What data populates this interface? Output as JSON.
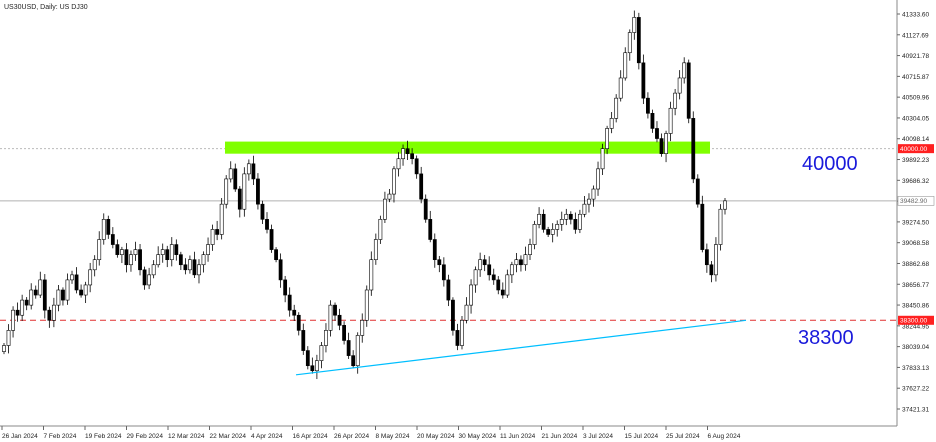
{
  "header": {
    "title": "US30USD, Daily:  US DJ30"
  },
  "annotations": {
    "resistance_label": "40000",
    "support_label": "38300",
    "resistance_tag": "40000.00",
    "support_tag": "38300.00",
    "last_price_tag": "39482.90"
  },
  "colors": {
    "bull_candle": "#ffffff",
    "bear_candle": "#000000",
    "resistance_zone": "#80ff00",
    "support_line": "#e03030",
    "trendline": "#00bfff",
    "label_text": "#1a1adb"
  },
  "chart_data": {
    "type": "candlestick",
    "title": "US30USD, Daily:  US DJ30",
    "ylim": [
      37330,
      41430
    ],
    "y_ticks": [
      "41333.60",
      "41127.69",
      "40921.78",
      "40715.87",
      "40509.96",
      "40304.05",
      "40098.14",
      "39892.23",
      "39686.32",
      "39480.41",
      "39274.50",
      "39068.58",
      "38862.68",
      "38656.77",
      "38450.86",
      "38244.95",
      "38039.04",
      "37833.13",
      "37627.22",
      "37421.31"
    ],
    "x_tick_labels": [
      "26 Jan 2024",
      "7 Feb 2024",
      "19 Feb 2024",
      "29 Feb 2024",
      "12 Mar 2024",
      "22 Mar 2024",
      "4 Apr 2024",
      "16 Apr 2024",
      "26 Apr 2024",
      "8 May 2024",
      "20 May 2024",
      "30 May 2024",
      "11 Jun 2024",
      "21 Jun 2024",
      "3 Jul 2024",
      "15 Jul 2024",
      "25 Jul 2024",
      "6 Aug 2024"
    ],
    "resistance_zone": [
      39960,
      40060
    ],
    "support_level": 38300,
    "last_price": 39482.9,
    "trendline": {
      "start": {
        "date": "18 Apr 2024",
        "price": 37760
      },
      "end": {
        "date": "7 Aug 2024",
        "price": 38300
      }
    },
    "closes": [
      38050,
      38200,
      38400,
      38350,
      38500,
      38450,
      38600,
      38550,
      38700,
      38400,
      38300,
      38450,
      38600,
      38500,
      38700,
      38750,
      38600,
      38550,
      38650,
      38800,
      38900,
      39100,
      39300,
      39150,
      39050,
      38950,
      39000,
      38850,
      38950,
      39000,
      38800,
      38650,
      38750,
      38850,
      38950,
      39000,
      38900,
      39050,
      38950,
      38850,
      38800,
      38900,
      38750,
      38850,
      38950,
      39050,
      39200,
      39150,
      39450,
      39700,
      39800,
      39600,
      39400,
      39750,
      39850,
      39700,
      39450,
      39300,
      39200,
      39000,
      38900,
      38700,
      38550,
      38400,
      38350,
      38200,
      38000,
      37850,
      37800,
      37900,
      38050,
      38200,
      38450,
      38350,
      38250,
      38100,
      37950,
      37850,
      38150,
      38300,
      38600,
      38900,
      39100,
      39300,
      39500,
      39550,
      39800,
      39900,
      40000,
      39950,
      39900,
      39750,
      39500,
      39300,
      39100,
      38900,
      38850,
      38700,
      38500,
      38200,
      38050,
      38300,
      38450,
      38650,
      38800,
      38900,
      38850,
      38750,
      38700,
      38600,
      38550,
      38750,
      38850,
      38900,
      38850,
      38950,
      39050,
      39250,
      39350,
      39200,
      39150,
      39200,
      39250,
      39300,
      39350,
      39300,
      39200,
      39350,
      39450,
      39500,
      39600,
      39800,
      40000,
      40200,
      40300,
      40500,
      40700,
      40950,
      41150,
      41300,
      40850,
      40500,
      40350,
      40200,
      40100,
      39950,
      40150,
      40400,
      40550,
      40700,
      40850,
      40300,
      39700,
      39450,
      39000,
      38850,
      38750,
      39050,
      39400,
      39482.9
    ]
  }
}
